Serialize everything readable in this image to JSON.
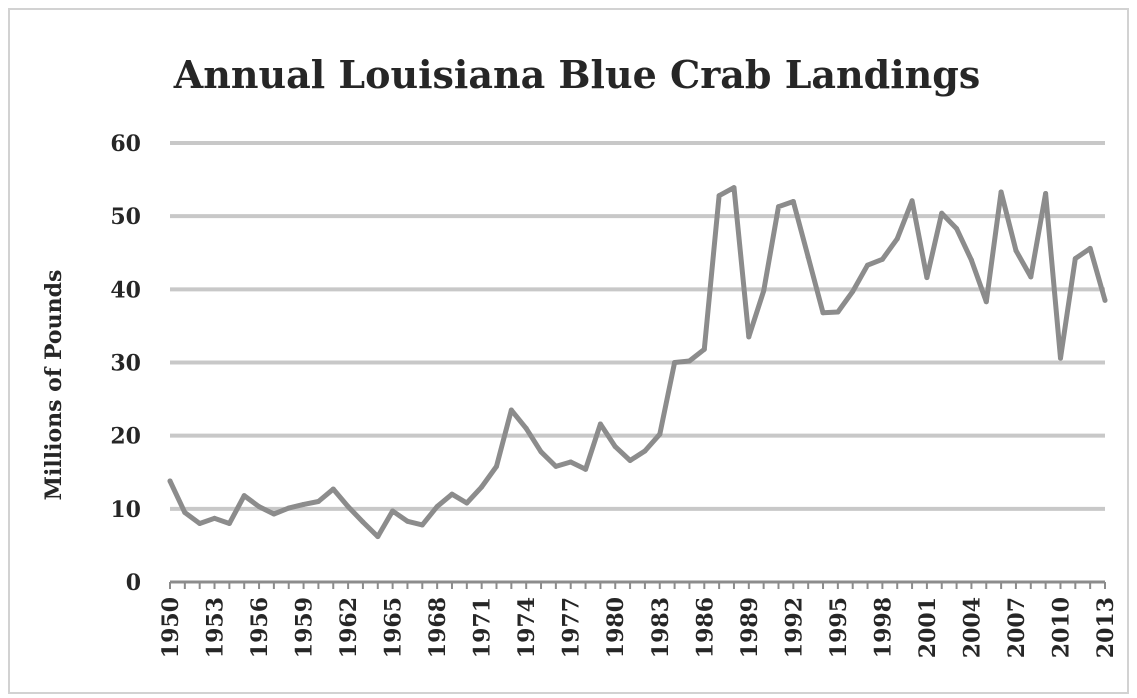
{
  "chart_data": {
    "type": "line",
    "title": "Annual Louisiana Blue Crab Landings",
    "xlabel": "",
    "ylabel": "Millions of Pounds",
    "ylim": [
      0,
      60
    ],
    "yticks": [
      "0",
      "10",
      "20",
      "30",
      "40",
      "50",
      "60"
    ],
    "xticks": [
      "1950",
      "1953",
      "1956",
      "1959",
      "1962",
      "1965",
      "1968",
      "1971",
      "1974",
      "1977",
      "1980",
      "1983",
      "1986",
      "1989",
      "1992",
      "1995",
      "1998",
      "2001",
      "2004",
      "2007",
      "2010",
      "2013"
    ],
    "grid": true,
    "legend": "none",
    "line_color": "#8c8c8c",
    "x": [
      1950,
      1951,
      1952,
      1953,
      1954,
      1955,
      1956,
      1957,
      1958,
      1959,
      1960,
      1961,
      1962,
      1963,
      1964,
      1965,
      1966,
      1967,
      1968,
      1969,
      1970,
      1971,
      1972,
      1973,
      1974,
      1975,
      1976,
      1977,
      1978,
      1979,
      1980,
      1981,
      1982,
      1983,
      1984,
      1985,
      1986,
      1987,
      1988,
      1989,
      1990,
      1991,
      1992,
      1993,
      1994,
      1995,
      1996,
      1997,
      1998,
      1999,
      2000,
      2001,
      2002,
      2003,
      2004,
      2005,
      2006,
      2007,
      2008,
      2009,
      2010,
      2011,
      2012,
      2013
    ],
    "values": [
      13.8,
      9.5,
      8,
      8.7,
      8,
      11.8,
      10.3,
      9.3,
      10.1,
      10.6,
      11,
      12.7,
      10.3,
      8.2,
      6.2,
      9.7,
      8.3,
      7.8,
      10.3,
      12,
      10.8,
      13,
      15.8,
      23.5,
      21,
      17.8,
      15.8,
      16.4,
      15.4,
      21.6,
      18.5,
      16.6,
      17.9,
      20.2,
      30,
      30.2,
      31.8,
      52.8,
      53.9,
      33.5,
      39.8,
      51.3,
      52,
      44.4,
      36.8,
      36.9,
      39.7,
      43.3,
      44.1,
      46.9,
      52.1,
      41.6,
      50.4,
      48.3,
      44,
      38.3,
      53.3,
      45.3,
      41.7,
      53.1,
      30.6,
      44.2,
      45.6,
      38.5
    ]
  }
}
